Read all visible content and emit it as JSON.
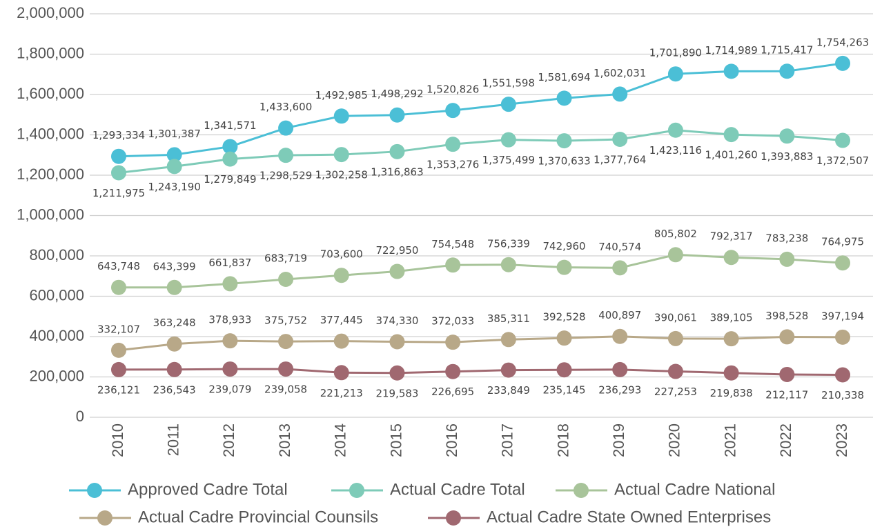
{
  "chart_data": {
    "type": "line",
    "categories": [
      "2010",
      "2011",
      "2012",
      "2013",
      "2014",
      "2015",
      "2016",
      "2017",
      "2018",
      "2019",
      "2020",
      "2021",
      "2022",
      "2023"
    ],
    "ylim": [
      0,
      2000000
    ],
    "yticks": [
      0,
      {
        "value": 200000,
        "label": "200,000"
      },
      {
        "value": 400000,
        "label": "400,000"
      },
      {
        "value": 600000,
        "label": "600,000"
      },
      {
        "value": 800000,
        "label": "800,000"
      },
      {
        "value": 1000000,
        "label": "1,000,000"
      },
      {
        "value": 1200000,
        "label": "1,200,000"
      },
      {
        "value": 1400000,
        "label": "1,400,000"
      },
      {
        "value": 1600000,
        "label": "1,600,000"
      },
      {
        "value": 1800000,
        "label": "1,800,000"
      },
      {
        "value": 2000000,
        "label": "2,000,000"
      }
    ],
    "grid": true,
    "legend": "bottom",
    "series": [
      {
        "name": "Approved Cadre Total",
        "color": "#4bbfd6",
        "values": [
          1293334,
          1301387,
          1341571,
          1433600,
          1492985,
          1498292,
          1520826,
          1551598,
          1581694,
          1602031,
          1701890,
          1714989,
          1715417,
          1754263
        ],
        "value_labels": [
          "1,293,334",
          "1,301,387",
          "1,341,571",
          "1,433,600",
          "1,492,985",
          "1,498,292",
          "1,520,826",
          "1,551,598",
          "1,581,694",
          "1,602,031",
          "1,701,890",
          "1,714,989",
          "1,715,417",
          "1,754,263"
        ]
      },
      {
        "name": "Actual Cadre Total",
        "color": "#7ecbb8",
        "values": [
          1211975,
          1243190,
          1279849,
          1298529,
          1302258,
          1316863,
          1353276,
          1375499,
          1370633,
          1377764,
          1423116,
          1401260,
          1393883,
          1372507
        ],
        "value_labels": [
          "1,211,975",
          "1,243,190",
          "1,279,849",
          "1,298,529",
          "1,302,258",
          "1,316,863",
          "1,353,276",
          "1,375,499",
          "1,370,633",
          "1,377,764",
          "1,423,116",
          "1,401,260",
          "1,393,883",
          "1,372,507"
        ]
      },
      {
        "name": "Actual Cadre National",
        "color": "#a8c49a",
        "values": [
          643748,
          643399,
          661837,
          683719,
          703600,
          722950,
          754548,
          756339,
          742960,
          740574,
          805802,
          792317,
          783238,
          764975
        ],
        "value_labels": [
          "643,748",
          "643,399",
          "661,837",
          "683,719",
          "703,600",
          "722,950",
          "754,548",
          "756,339",
          "742,960",
          "740,574",
          "805,802",
          "792,317",
          "783,238",
          "764,975"
        ]
      },
      {
        "name": "Actual Cadre Provincial Counsils",
        "color": "#b8a888",
        "values": [
          332107,
          363248,
          378933,
          375752,
          377445,
          374330,
          372033,
          385311,
          392528,
          400897,
          390061,
          389105,
          398528,
          397194
        ],
        "value_labels": [
          "332,107",
          "363,248",
          "378,933",
          "375,752",
          "377,445",
          "374,330",
          "372,033",
          "385,311",
          "392,528",
          "400,897",
          "390,061",
          "389,105",
          "398,528",
          "397,194"
        ]
      },
      {
        "name": "Actual Cadre State Owned Enterprises",
        "color": "#a06870",
        "values": [
          236121,
          236543,
          239079,
          239058,
          221213,
          219583,
          226695,
          233849,
          235145,
          236293,
          227253,
          219838,
          212117,
          210338
        ],
        "value_labels": [
          "236,121",
          "236,543",
          "239,079",
          "239,058",
          "221,213",
          "219,583",
          "226,695",
          "233,849",
          "235,145",
          "236,293",
          "227,253",
          "219,838",
          "212,117",
          "210,338"
        ]
      }
    ]
  }
}
